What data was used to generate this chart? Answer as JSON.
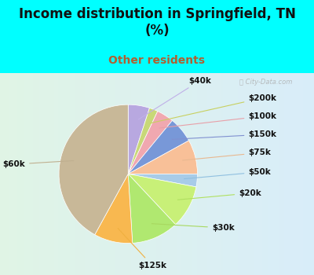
{
  "title": "Income distribution in Springfield, TN\n(%)",
  "subtitle": "Other residents",
  "title_color": "#111111",
  "subtitle_color": "#b06030",
  "title_fontsize": 12,
  "subtitle_fontsize": 10,
  "outer_bg": "#00FFFF",
  "chart_bg": "#e0f0e8",
  "watermark": "ⓘ City-Data.com",
  "slices": [
    {
      "label": "$40k",
      "value": 5,
      "color": "#b8a8e0"
    },
    {
      "label": "$200k",
      "value": 2,
      "color": "#c8d878"
    },
    {
      "label": "$100k",
      "value": 4,
      "color": "#f0a8b0"
    },
    {
      "label": "$150k",
      "value": 6,
      "color": "#7898d8"
    },
    {
      "label": "$75k",
      "value": 8,
      "color": "#f8c098"
    },
    {
      "label": "$50k",
      "value": 3,
      "color": "#a8cce8"
    },
    {
      "label": "$20k",
      "value": 10,
      "color": "#c8f078"
    },
    {
      "label": "$30k",
      "value": 11,
      "color": "#b0e870"
    },
    {
      "label": "$125k",
      "value": 9,
      "color": "#f8b850"
    },
    {
      "label": "$60k",
      "value": 42,
      "color": "#c8b898"
    }
  ],
  "label_fontsize": 7.5,
  "label_color": "#111111"
}
